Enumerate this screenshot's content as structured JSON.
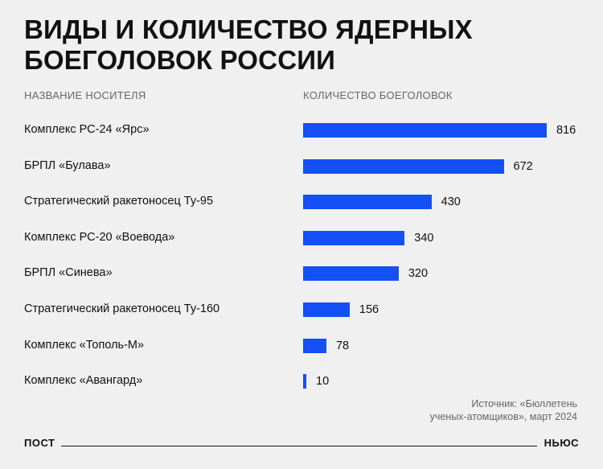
{
  "title_lines": [
    "ВИДЫ И КОЛИЧЕСТВО ЯДЕРНЫХ",
    "БОЕГОЛОВОК РОССИИ"
  ],
  "headers": {
    "carrier": "НАЗВАНИЕ НОСИТЕЛЯ",
    "count": "КОЛИЧЕСТВО БОЕГОЛОВОК"
  },
  "chart_data": {
    "type": "bar",
    "orientation": "horizontal",
    "categories": [
      "Комплекс РС-24 «Ярс»",
      "БРПЛ «Булава»",
      "Стратегический ракетоносец Ту-95",
      "Комплекс РС-20 «Воевода»",
      "БРПЛ «Синева»",
      "Стратегический ракетоносец Ту-160",
      "Комплекс «Тополь-М»",
      "Комплекс «Авангард»"
    ],
    "values": [
      816,
      672,
      430,
      340,
      320,
      156,
      78,
      10
    ],
    "value_labels": [
      "816",
      "672",
      "430",
      "340",
      "320",
      "156",
      "78",
      "10"
    ],
    "bar_color": "#1450f5",
    "grid": false
  },
  "source_lines": [
    "Источник: «Бюллетень",
    "ученых-атомщиков», март 2024"
  ],
  "footer": {
    "left_brand": "ПОСТ",
    "right_brand": "НЬЮС"
  }
}
